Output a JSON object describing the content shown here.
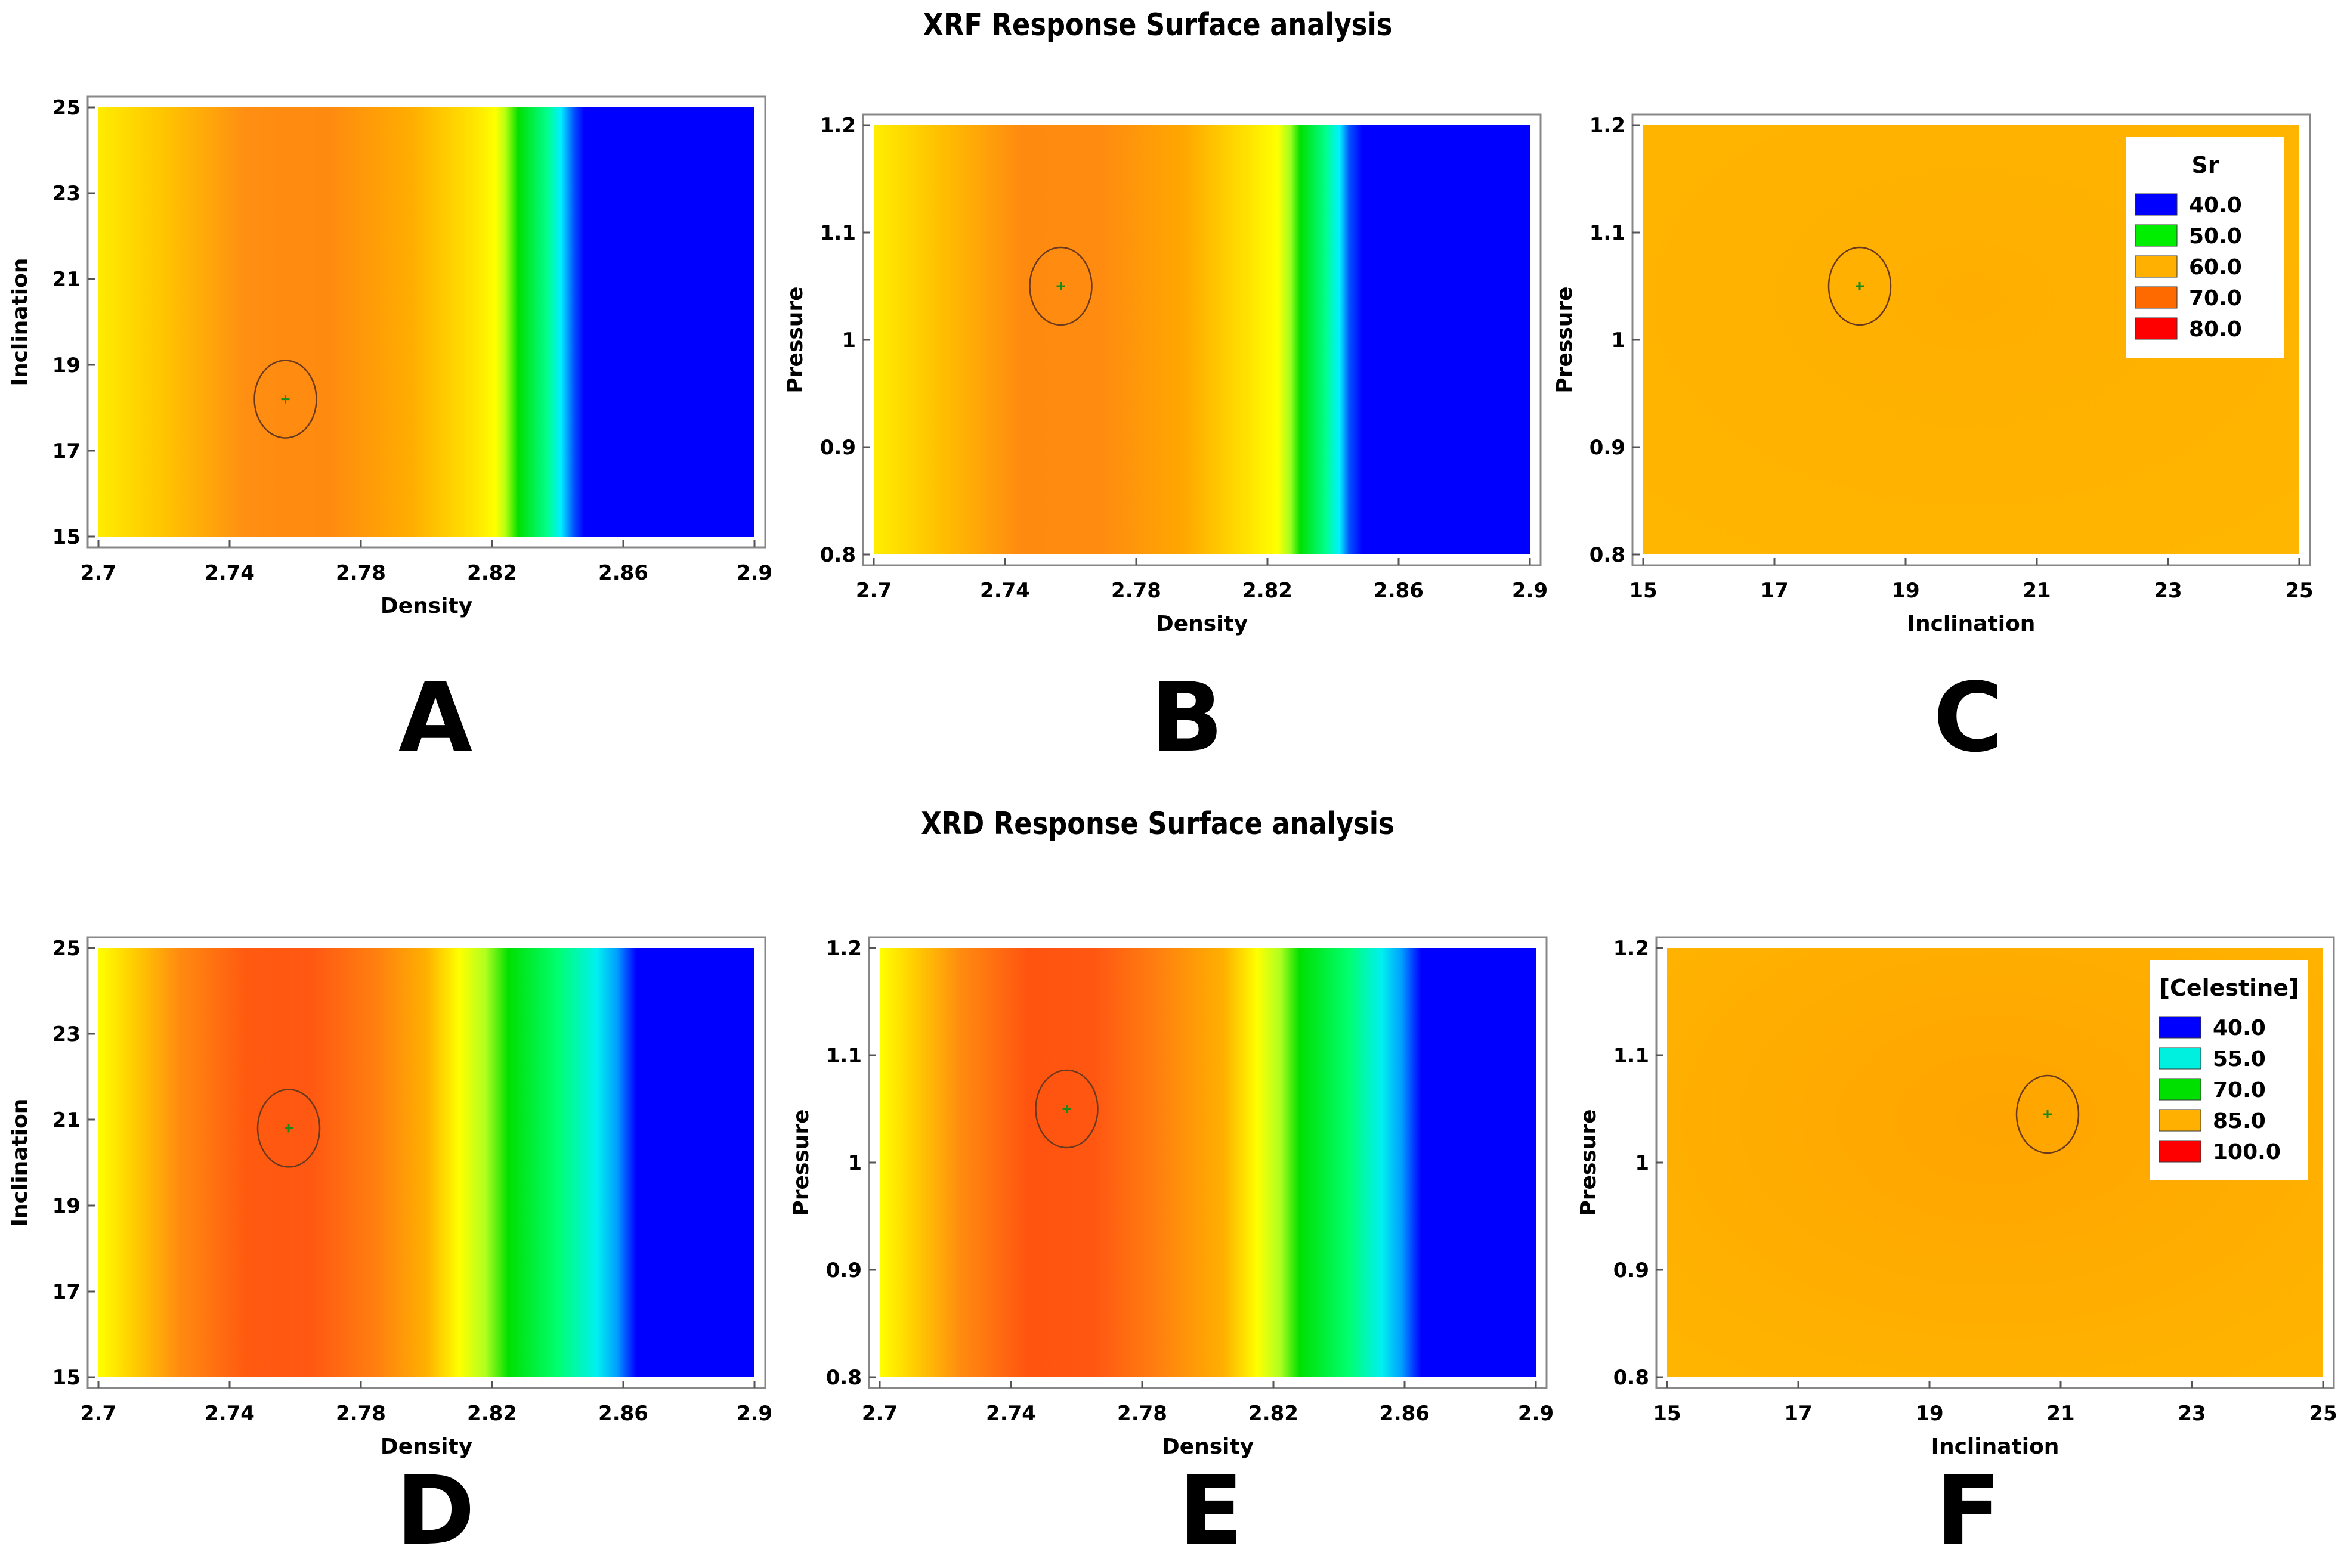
{
  "page": {
    "xrf_title": "XRF Response Surface analysis",
    "xrd_title": "XRD Response Surface analysis"
  },
  "chart_data": [
    {
      "id": "A",
      "letter": "A",
      "type": "heatmap",
      "group": "XRF",
      "xlabel": "Density",
      "ylabel": "Inclination",
      "xlim": [
        2.7,
        2.9
      ],
      "ylim": [
        15,
        25
      ],
      "xticks": [
        "2.7",
        "2.74",
        "2.78",
        "2.82",
        "2.86",
        "2.9"
      ],
      "yticks": [
        "15",
        "17",
        "19",
        "21",
        "23",
        "25"
      ],
      "optimum": {
        "x": 2.757,
        "y": 18.2
      },
      "bands": [
        {
          "x": 2.7,
          "color": "#ffec00"
        },
        {
          "x": 2.72,
          "color": "#ffc400"
        },
        {
          "x": 2.745,
          "color": "#ff8e12"
        },
        {
          "x": 2.77,
          "color": "#ff8a10"
        },
        {
          "x": 2.795,
          "color": "#ffac00"
        },
        {
          "x": 2.815,
          "color": "#ffe600"
        },
        {
          "x": 2.821,
          "color": "#ffff00"
        },
        {
          "x": 2.824,
          "color": "#b8ff10"
        },
        {
          "x": 2.828,
          "color": "#00e000"
        },
        {
          "x": 2.837,
          "color": "#00ff90"
        },
        {
          "x": 2.841,
          "color": "#00f0ff"
        },
        {
          "x": 2.845,
          "color": "#0050ff"
        },
        {
          "x": 2.848,
          "color": "#0000ff"
        },
        {
          "x": 2.9,
          "color": "#0000ff"
        }
      ],
      "legend": null
    },
    {
      "id": "B",
      "letter": "B",
      "type": "heatmap",
      "group": "XRF",
      "xlabel": "Density",
      "ylabel": "Pressure",
      "xlim": [
        2.7,
        2.9
      ],
      "ylim": [
        0.8,
        1.2
      ],
      "xticks": [
        "2.7",
        "2.74",
        "2.78",
        "2.82",
        "2.86",
        "2.9"
      ],
      "yticks": [
        "0.8",
        "0.9",
        "1",
        "1.1",
        "1.2"
      ],
      "optimum": {
        "x": 2.757,
        "y": 1.05
      },
      "bands": [
        {
          "x": 2.7,
          "color": "#ffee00"
        },
        {
          "x": 2.72,
          "color": "#ffc000"
        },
        {
          "x": 2.745,
          "color": "#ff8a10"
        },
        {
          "x": 2.77,
          "color": "#ff8c10"
        },
        {
          "x": 2.795,
          "color": "#ffa800"
        },
        {
          "x": 2.815,
          "color": "#ffe600"
        },
        {
          "x": 2.823,
          "color": "#ffff00"
        },
        {
          "x": 2.827,
          "color": "#a0ff20"
        },
        {
          "x": 2.83,
          "color": "#00e000"
        },
        {
          "x": 2.838,
          "color": "#00ff90"
        },
        {
          "x": 2.842,
          "color": "#00f0ff"
        },
        {
          "x": 2.845,
          "color": "#0050ff"
        },
        {
          "x": 2.849,
          "color": "#0000ff"
        },
        {
          "x": 2.9,
          "color": "#0000ff"
        }
      ],
      "legend": null
    },
    {
      "id": "C",
      "letter": "C",
      "type": "heatmap",
      "group": "XRF",
      "xlabel": "Inclination",
      "ylabel": "Pressure",
      "xlim": [
        15,
        25
      ],
      "ylim": [
        0.8,
        1.2
      ],
      "xticks": [
        "15",
        "17",
        "19",
        "21",
        "23",
        "25"
      ],
      "yticks": [
        "0.8",
        "0.9",
        "1",
        "1.1",
        "1.2"
      ],
      "optimum": {
        "x": 18.3,
        "y": 1.05
      },
      "uniform_color": "#ffae00",
      "legend": {
        "title": "Sr",
        "entries": [
          {
            "label": "40.0",
            "color": "#0000ff"
          },
          {
            "label": "50.0",
            "color": "#00ee00"
          },
          {
            "label": "60.0",
            "color": "#ffb000"
          },
          {
            "label": "70.0",
            "color": "#ff6a00"
          },
          {
            "label": "80.0",
            "color": "#ff0000"
          }
        ]
      }
    },
    {
      "id": "D",
      "letter": "D",
      "type": "heatmap",
      "group": "XRD",
      "xlabel": "Density",
      "ylabel": "Inclination",
      "xlim": [
        2.7,
        2.9
      ],
      "ylim": [
        15,
        25
      ],
      "xticks": [
        "2.7",
        "2.74",
        "2.78",
        "2.82",
        "2.86",
        "2.9"
      ],
      "yticks": [
        "15",
        "17",
        "19",
        "21",
        "23",
        "25"
      ],
      "optimum": {
        "x": 2.758,
        "y": 20.8
      },
      "bands": [
        {
          "x": 2.7,
          "color": "#ffff00"
        },
        {
          "x": 2.71,
          "color": "#ffd000"
        },
        {
          "x": 2.725,
          "color": "#ff8a10"
        },
        {
          "x": 2.745,
          "color": "#ff5a10"
        },
        {
          "x": 2.765,
          "color": "#ff5812"
        },
        {
          "x": 2.785,
          "color": "#ff8010"
        },
        {
          "x": 2.8,
          "color": "#ffb000"
        },
        {
          "x": 2.81,
          "color": "#ffff00"
        },
        {
          "x": 2.818,
          "color": "#b0ff20"
        },
        {
          "x": 2.825,
          "color": "#00e000"
        },
        {
          "x": 2.84,
          "color": "#00ff70"
        },
        {
          "x": 2.852,
          "color": "#00f0f0"
        },
        {
          "x": 2.858,
          "color": "#00a0ff"
        },
        {
          "x": 2.864,
          "color": "#0000ff"
        },
        {
          "x": 2.9,
          "color": "#0000ff"
        }
      ],
      "legend": null
    },
    {
      "id": "E",
      "letter": "E",
      "type": "heatmap",
      "group": "XRD",
      "xlabel": "Density",
      "ylabel": "Pressure",
      "xlim": [
        2.7,
        2.9
      ],
      "ylim": [
        0.8,
        1.2
      ],
      "xticks": [
        "2.7",
        "2.74",
        "2.78",
        "2.82",
        "2.86",
        "2.9"
      ],
      "yticks": [
        "0.8",
        "0.9",
        "1",
        "1.1",
        "1.2"
      ],
      "optimum": {
        "x": 2.757,
        "y": 1.05
      },
      "bands": [
        {
          "x": 2.7,
          "color": "#ffff00"
        },
        {
          "x": 2.71,
          "color": "#ffd000"
        },
        {
          "x": 2.725,
          "color": "#ff8a10"
        },
        {
          "x": 2.745,
          "color": "#ff5410"
        },
        {
          "x": 2.765,
          "color": "#ff5612"
        },
        {
          "x": 2.785,
          "color": "#ff8010"
        },
        {
          "x": 2.805,
          "color": "#ffb000"
        },
        {
          "x": 2.815,
          "color": "#ffff00"
        },
        {
          "x": 2.822,
          "color": "#b0ff20"
        },
        {
          "x": 2.828,
          "color": "#00e000"
        },
        {
          "x": 2.843,
          "color": "#00ff70"
        },
        {
          "x": 2.853,
          "color": "#00f0f0"
        },
        {
          "x": 2.859,
          "color": "#00a0ff"
        },
        {
          "x": 2.865,
          "color": "#0000ff"
        },
        {
          "x": 2.9,
          "color": "#0000ff"
        }
      ],
      "legend": null
    },
    {
      "id": "F",
      "letter": "F",
      "type": "heatmap",
      "group": "XRD",
      "xlabel": "Inclination",
      "ylabel": "Pressure",
      "xlim": [
        15,
        25
      ],
      "ylim": [
        0.8,
        1.2
      ],
      "xticks": [
        "15",
        "17",
        "19",
        "21",
        "23",
        "25"
      ],
      "yticks": [
        "0.8",
        "0.9",
        "1",
        "1.1",
        "1.2"
      ],
      "optimum": {
        "x": 20.8,
        "y": 1.045
      },
      "uniform_color": "#ffa400",
      "legend": {
        "title": "[Celestine]",
        "entries": [
          {
            "label": "40.0",
            "color": "#0000ff"
          },
          {
            "label": "55.0",
            "color": "#00f0e0"
          },
          {
            "label": "70.0",
            "color": "#00e000"
          },
          {
            "label": "85.0",
            "color": "#ffb000"
          },
          {
            "label": "100.0",
            "color": "#ff0000"
          }
        ]
      }
    }
  ]
}
